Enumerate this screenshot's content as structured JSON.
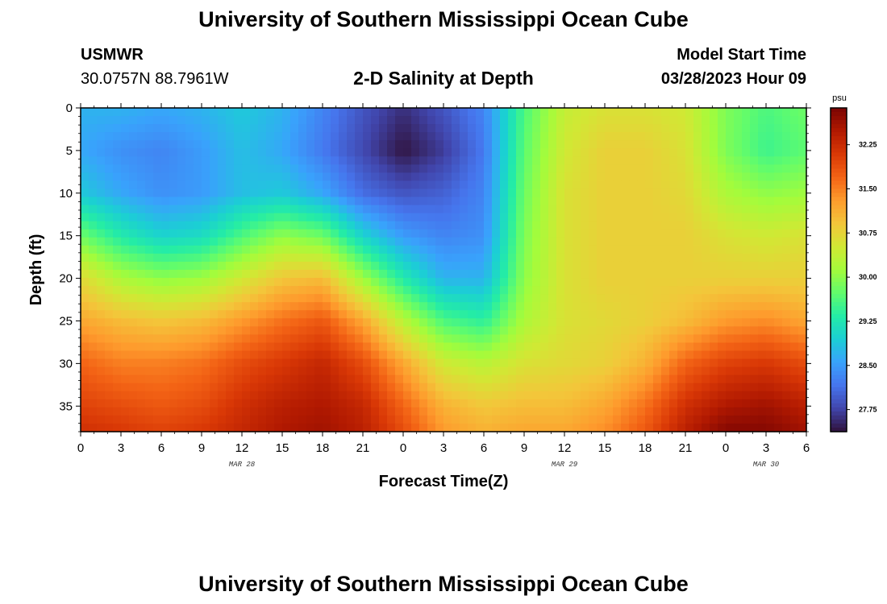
{
  "header": {
    "title": "University of Southern Mississippi Ocean Cube",
    "station": "USMWR",
    "coords": "30.0757N  88.7961W",
    "subtitle": "2-D Salinity at Depth",
    "model_start_label": "Model Start Time",
    "model_start_value": "03/28/2023 Hour 09"
  },
  "footer": {
    "title": "University of Southern Mississippi Ocean Cube"
  },
  "colors": {
    "colormap": [
      "#30123b",
      "#4145ab",
      "#4675ed",
      "#39a2fc",
      "#1bcfd4",
      "#24eca6",
      "#61fc6c",
      "#a4fc3b",
      "#d1e834",
      "#f3c63a",
      "#fe9b2d",
      "#f36315",
      "#d93806",
      "#b11901",
      "#7a0403"
    ]
  },
  "chart_data": {
    "type": "heatmap",
    "title": "2-D Salinity at Depth",
    "xlabel": "Forecast Time(Z)",
    "ylabel": "Depth (ft)",
    "x_hours_since_mar28_00": [
      0,
      3,
      6,
      9,
      12,
      15,
      18,
      21,
      24,
      27,
      30,
      33,
      36,
      39,
      42,
      45,
      48,
      51,
      54
    ],
    "x_tick_labels": [
      "0",
      "3",
      "6",
      "9",
      "12",
      "15",
      "18",
      "21",
      "0",
      "3",
      "6",
      "9",
      "12",
      "15",
      "18",
      "21",
      "0",
      "3",
      "6"
    ],
    "date_labels": [
      {
        "label": "MAR 28",
        "hour": 12
      },
      {
        "label": "MAR 29",
        "hour": 36
      },
      {
        "label": "MAR 30",
        "hour": 51
      }
    ],
    "y_depth_ft": [
      0,
      5,
      10,
      15,
      20,
      25,
      30,
      35,
      38
    ],
    "y_tick_labels": [
      "0",
      "5",
      "10",
      "15",
      "20",
      "25",
      "30",
      "35"
    ],
    "ylim": [
      0,
      38
    ],
    "xlim": [
      0,
      54
    ],
    "salinity_psu": [
      [
        28.7,
        28.7,
        28.6,
        28.7,
        28.9,
        28.7,
        28.3,
        27.9,
        27.6,
        27.9,
        28.3,
        29.6,
        30.4,
        30.6,
        30.6,
        30.5,
        29.9,
        29.6,
        29.8
      ],
      [
        28.6,
        28.4,
        28.3,
        28.5,
        28.8,
        28.6,
        28.2,
        27.8,
        27.4,
        27.7,
        28.2,
        29.7,
        30.5,
        30.8,
        30.8,
        30.6,
        29.9,
        29.5,
        29.7
      ],
      [
        28.9,
        28.6,
        28.4,
        28.5,
        28.8,
        28.9,
        28.6,
        28.1,
        27.9,
        28.0,
        28.3,
        29.8,
        30.6,
        30.8,
        30.8,
        30.7,
        30.2,
        30.0,
        30.1
      ],
      [
        29.8,
        29.3,
        29.0,
        29.1,
        29.6,
        30.0,
        29.8,
        29.0,
        28.5,
        28.3,
        28.4,
        29.9,
        30.6,
        30.8,
        30.8,
        30.8,
        30.6,
        30.5,
        30.6
      ],
      [
        30.7,
        30.2,
        30.0,
        30.1,
        30.5,
        30.9,
        31.0,
        30.1,
        29.3,
        28.7,
        28.7,
        30.0,
        30.6,
        30.8,
        30.8,
        30.8,
        30.8,
        30.8,
        30.8
      ],
      [
        31.2,
        31.0,
        30.9,
        31.0,
        31.3,
        31.6,
        31.8,
        31.2,
        30.3,
        29.6,
        29.4,
        30.2,
        30.6,
        30.7,
        30.8,
        31.0,
        31.3,
        31.4,
        31.2
      ],
      [
        31.7,
        31.5,
        31.5,
        31.6,
        31.9,
        32.1,
        32.3,
        31.9,
        31.2,
        30.5,
        30.3,
        30.6,
        30.7,
        30.8,
        31.1,
        31.7,
        32.0,
        32.1,
        31.9
      ],
      [
        32.0,
        31.9,
        31.8,
        31.9,
        32.2,
        32.4,
        32.5,
        32.3,
        31.7,
        31.1,
        30.9,
        31.0,
        31.0,
        31.2,
        31.6,
        32.2,
        32.5,
        32.6,
        32.4
      ],
      [
        32.2,
        32.1,
        32.0,
        32.1,
        32.3,
        32.5,
        32.6,
        32.4,
        31.9,
        31.3,
        31.1,
        31.2,
        31.2,
        31.4,
        31.8,
        32.4,
        32.8,
        32.8,
        32.6
      ]
    ],
    "colorbar": {
      "unit": "psu",
      "vmin": 27.375,
      "vmax": 32.875,
      "labels": [
        "32.25",
        "31.50",
        "30.75",
        "30.00",
        "29.25",
        "28.50",
        "27.75"
      ],
      "values": [
        32.25,
        31.5,
        30.75,
        30.0,
        29.25,
        28.5,
        27.75
      ]
    }
  }
}
